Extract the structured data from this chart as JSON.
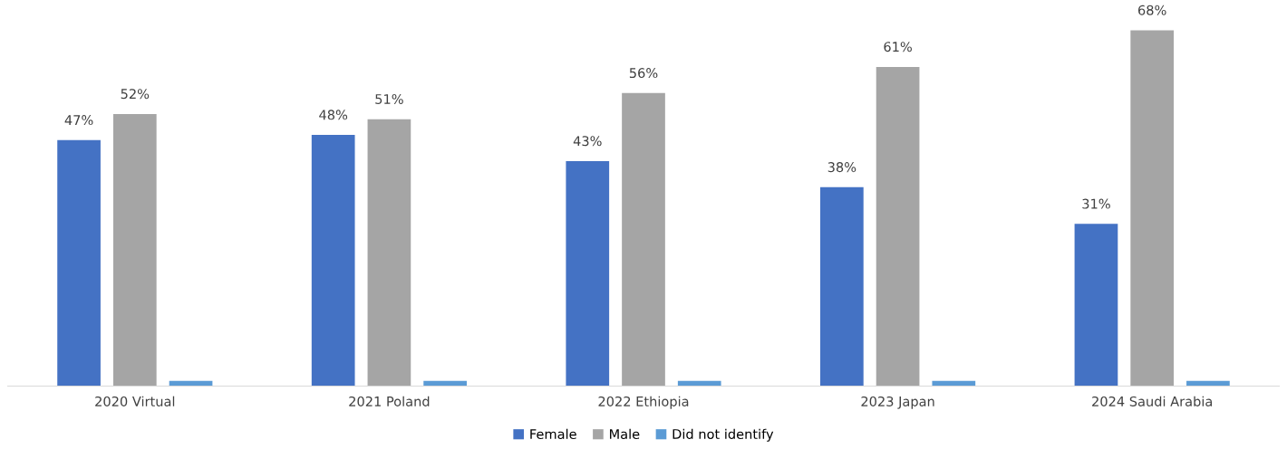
{
  "chart_data": {
    "type": "bar",
    "categories": [
      "2020 Virtual",
      "2021 Poland",
      "2022 Ethiopia",
      "2023 Japan",
      "2024 Saudi Arabia"
    ],
    "series": [
      {
        "name": "Female",
        "color": "#4472c4",
        "values": [
          47,
          48,
          43,
          38,
          31
        ],
        "value_labels": [
          "47%",
          "48%",
          "43%",
          "38%",
          "31%"
        ]
      },
      {
        "name": "Male",
        "color": "#a5a5a5",
        "values": [
          52,
          51,
          56,
          61,
          68
        ],
        "value_labels": [
          "52%",
          "51%",
          "56%",
          "61%",
          "68%"
        ]
      },
      {
        "name": "Did not identify",
        "color": "#5b9bd5",
        "values": [
          1,
          1,
          1,
          1,
          1
        ],
        "value_labels": [
          null,
          null,
          null,
          null,
          null
        ]
      }
    ],
    "legend": "bottom"
  }
}
